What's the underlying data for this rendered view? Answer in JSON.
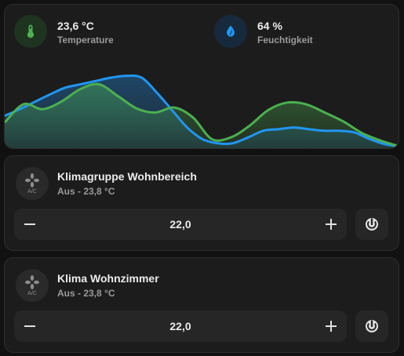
{
  "sensors": {
    "temperature": {
      "value": "23,6 °C",
      "label": "Temperature",
      "icon": "thermometer-icon",
      "color": "#4caf50"
    },
    "humidity": {
      "value": "64 %",
      "label": "Feuchtigkeit",
      "icon": "water-drop-icon",
      "color": "#2196f3"
    }
  },
  "chart_data": {
    "type": "area",
    "series": [
      {
        "values": [
          0.3,
          0.52,
          0.46,
          0.55,
          0.7,
          0.76,
          0.62,
          0.47,
          0.42,
          0.48,
          0.36,
          0.1,
          0.12,
          0.26,
          0.45,
          0.54,
          0.52,
          0.42,
          0.31,
          0.17,
          0.08,
          0.01
        ],
        "color": "#4caf50"
      },
      {
        "values": [
          0.38,
          0.46,
          0.55,
          0.64,
          0.72,
          0.76,
          0.8,
          0.84,
          0.86,
          0.84,
          0.66,
          0.45,
          0.24,
          0.1,
          0.05,
          0.05,
          0.12,
          0.2,
          0.22,
          0.24,
          0.22,
          0.2,
          0.2,
          0.18,
          0.1,
          0.04,
          0.01
        ],
        "color": "#2196f3"
      }
    ]
  },
  "climates": [
    {
      "icon": "air-conditioner-icon",
      "name": "Klimagruppe Wohnbereich",
      "status": "Aus - 23,8 °C",
      "target": "22,0",
      "minus": "−",
      "plus": "+",
      "mode_icon": "power-icon"
    },
    {
      "icon": "air-conditioner-icon",
      "name": "Klima Wohnzimmer",
      "status": "Aus - 23,8 °C",
      "target": "22,0",
      "minus": "−",
      "plus": "+",
      "mode_icon": "power-icon"
    }
  ],
  "colors": {
    "background": "#111111",
    "card": "#1c1c1c",
    "control": "#262626",
    "green": "#4caf50",
    "blue": "#2196f3"
  }
}
